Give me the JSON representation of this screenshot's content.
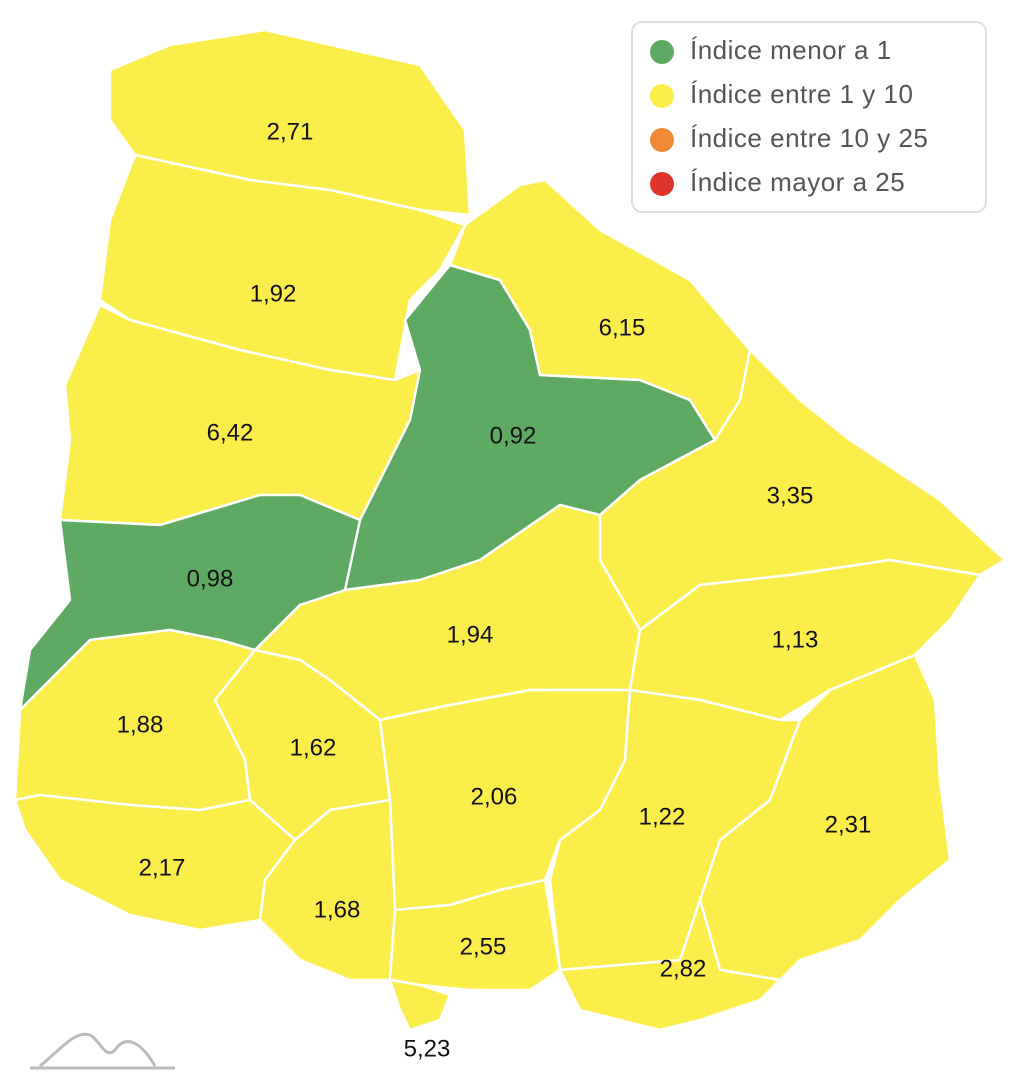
{
  "legend": [
    {
      "label": "Índice menor a 1",
      "color": "#5eaa62"
    },
    {
      "label": "Índice entre 1 y 10",
      "color": "#fbee4b"
    },
    {
      "label": "Índice entre 10 y 25",
      "color": "#ee8a35"
    },
    {
      "label": "Índice mayor a 25",
      "color": "#e0352f"
    }
  ],
  "regions": [
    {
      "value": 2.71,
      "value_label": "2,71",
      "color": "#fbee4b"
    },
    {
      "value": 1.92,
      "value_label": "1,92",
      "color": "#fbee4b"
    },
    {
      "value": 6.42,
      "value_label": "6,42",
      "color": "#fbee4b"
    },
    {
      "value": 0.98,
      "value_label": "0,98",
      "color": "#5eaa62"
    },
    {
      "value": 0.92,
      "value_label": "0,92",
      "color": "#5eaa62"
    },
    {
      "value": 6.15,
      "value_label": "6,15",
      "color": "#fbee4b"
    },
    {
      "value": 3.35,
      "value_label": "3,35",
      "color": "#fbee4b"
    },
    {
      "value": 1.94,
      "value_label": "1,94",
      "color": "#fbee4b"
    },
    {
      "value": 1.13,
      "value_label": "1,13",
      "color": "#fbee4b"
    },
    {
      "value": 1.88,
      "value_label": "1,88",
      "color": "#fbee4b"
    },
    {
      "value": 1.62,
      "value_label": "1,62",
      "color": "#fbee4b"
    },
    {
      "value": 2.06,
      "value_label": "2,06",
      "color": "#fbee4b"
    },
    {
      "value": 1.22,
      "value_label": "1,22",
      "color": "#fbee4b"
    },
    {
      "value": 2.31,
      "value_label": "2,31",
      "color": "#fbee4b"
    },
    {
      "value": 2.17,
      "value_label": "2,17",
      "color": "#fbee4b"
    },
    {
      "value": 1.68,
      "value_label": "1,68",
      "color": "#fbee4b"
    },
    {
      "value": 2.55,
      "value_label": "2,55",
      "color": "#fbee4b"
    },
    {
      "value": 2.82,
      "value_label": "2,82",
      "color": "#fbee4b"
    },
    {
      "value": 5.23,
      "value_label": "5,23",
      "color": "#fbee4b"
    }
  ]
}
